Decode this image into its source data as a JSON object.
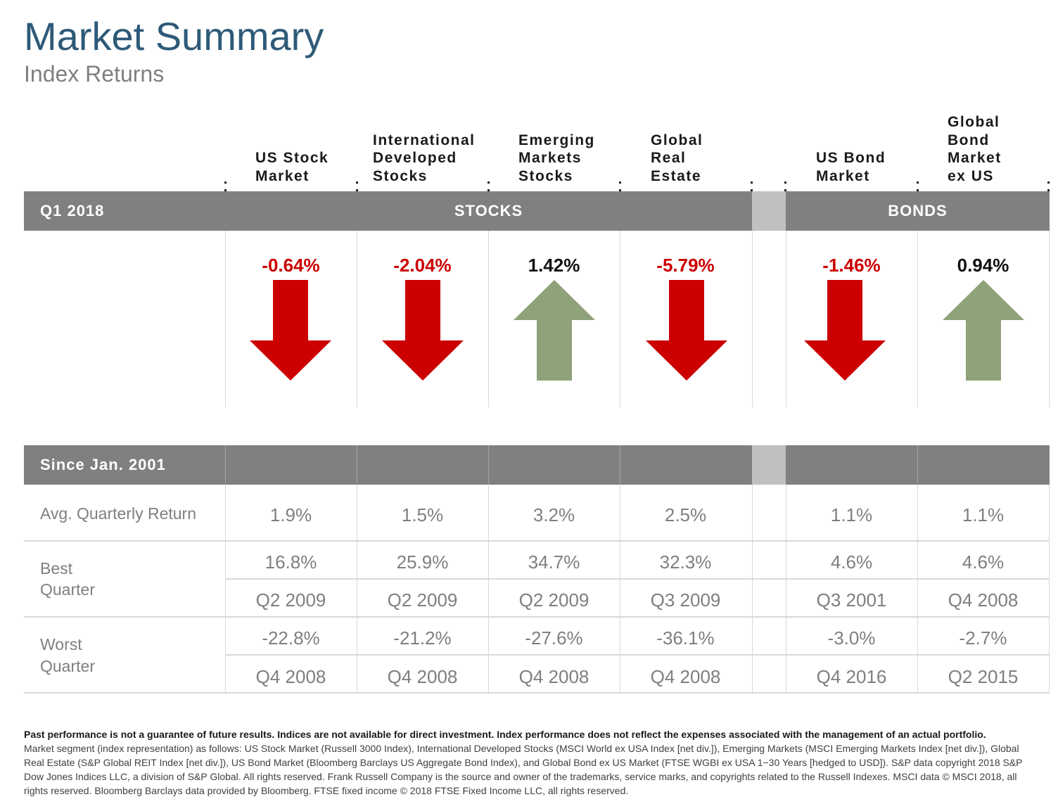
{
  "header": {
    "title": "Market Summary",
    "subtitle": "Index Returns"
  },
  "columns": [
    {
      "heading": "US Stock\nMarket",
      "q1_return": "-0.64%",
      "direction": "down",
      "avg": "1.9%",
      "best": "16.8%",
      "best_q": "Q2 2009",
      "worst": "-22.8%",
      "worst_q": "Q4 2008"
    },
    {
      "heading": "International\nDeveloped\nStocks",
      "q1_return": "-2.04%",
      "direction": "down",
      "avg": "1.5%",
      "best": "25.9%",
      "best_q": "Q2 2009",
      "worst": "-21.2%",
      "worst_q": "Q4 2008"
    },
    {
      "heading": "Emerging\nMarkets\nStocks",
      "q1_return": "1.42%",
      "direction": "up",
      "avg": "3.2%",
      "best": "34.7%",
      "best_q": "Q2 2009",
      "worst": "-27.6%",
      "worst_q": "Q4 2008"
    },
    {
      "heading": "Global\nReal\nEstate",
      "q1_return": "-5.79%",
      "direction": "down",
      "avg": "2.5%",
      "best": "32.3%",
      "best_q": "Q3 2009",
      "worst": "-36.1%",
      "worst_q": "Q4 2008"
    },
    {
      "heading": "US Bond\nMarket",
      "q1_return": "-1.46%",
      "direction": "down",
      "avg": "1.1%",
      "best": "4.6%",
      "best_q": "Q3 2001",
      "worst": "-3.0%",
      "worst_q": "Q4 2016"
    },
    {
      "heading": "Global\nBond\nMarket\nex US",
      "q1_return": "0.94%",
      "direction": "up",
      "avg": "1.1%",
      "best": "4.6%",
      "best_q": "Q4 2008",
      "worst": "-2.7%",
      "worst_q": "Q2 2015"
    }
  ],
  "q1_bar": {
    "period": "Q1 2018",
    "stocks_label": "STOCKS",
    "bonds_label": "BONDS"
  },
  "since_bar": {
    "period": "Since Jan. 2001"
  },
  "row_labels": {
    "avg": "Avg. Quarterly Return",
    "best_1": "Best",
    "best_2": "Quarter",
    "worst_1": "Worst",
    "worst_2": "Quarter"
  },
  "colors": {
    "negative": "#cc0000",
    "positive": "#8fa27a",
    "header_bar": "#808080",
    "title": "#2e5a78"
  },
  "footnote": {
    "bold": "Past performance is not a guarantee of future results. Indices are not available for direct investment. Index performance does not reflect the expenses associated with the management of an actual portfolio.",
    "body": "Market segment (index representation) as follows: US Stock Market (Russell 3000 Index), International Developed Stocks (MSCI World ex USA Index [net div.]), Emerging Markets (MSCI Emerging Markets Index [net div.]), Global Real Estate (S&P Global REIT Index [net div.]), US Bond Market (Bloomberg Barclays US Aggregate Bond Index), and Global Bond ex US Market (FTSE WGBI ex USA 1−30 Years [hedged to USD]). S&P data copyright 2018 S&P Dow Jones Indices LLC, a division of S&P Global. All rights reserved. Frank Russell Company is the source and owner of the trademarks, service marks, and copyrights related to the Russell Indexes. MSCI data © MSCI 2018, all rights reserved. Bloomberg Barclays data provided by Bloomberg. FTSE fixed income © 2018 FTSE Fixed Income LLC, all rights reserved."
  }
}
